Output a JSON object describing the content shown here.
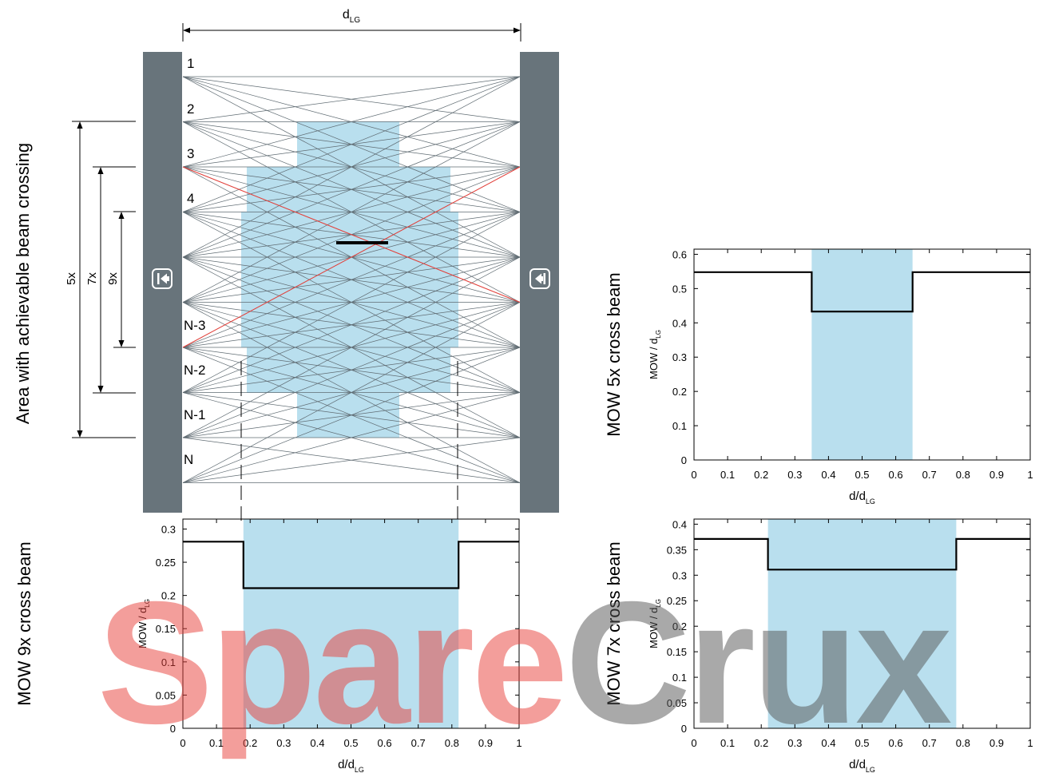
{
  "diagram": {
    "width_label_main": "d",
    "width_label_sub": "LG",
    "beam_labels": [
      "1",
      "2",
      "3",
      "4",
      "N-3",
      "N-2",
      "N-1",
      "N"
    ],
    "bracket_labels": [
      "5x",
      "7x",
      "9x"
    ],
    "left_title": "Area with achievable beam crossing",
    "sender_icon": "sender-arrow-icon",
    "receiver_icon": "receiver-arrow-icon",
    "colors": {
      "post": "#68747b",
      "highlight": "#b9dfee",
      "beam": "#5f6b72",
      "cross_beam": "#e8403a",
      "step_line": "#000000"
    }
  },
  "chart_data": [
    {
      "type": "line",
      "title": "MOW 5x cross beam",
      "ylabel_main": "MOW / d",
      "ylabel_sub": "LG",
      "xlabel_main": "d/d",
      "xlabel_sub": "LG",
      "x_ticks": [
        "0",
        "0.1",
        "0.2",
        "0.3",
        "0.4",
        "0.5",
        "0.6",
        "0.7",
        "0.8",
        "0.9",
        "1"
      ],
      "y_ticks": [
        "0",
        "0.1",
        "0.2",
        "0.3",
        "0.4",
        "0.5",
        "0.6"
      ],
      "xlim": [
        0,
        1
      ],
      "ylim": [
        0,
        0.615
      ],
      "highlight_range": [
        0.35,
        0.65
      ],
      "x": [
        0,
        0.35,
        0.35,
        0.65,
        0.65,
        1
      ],
      "y": [
        0.548,
        0.548,
        0.433,
        0.433,
        0.548,
        0.548
      ]
    },
    {
      "type": "line",
      "title": "MOW 9x cross beam",
      "ylabel_main": "MOW / d",
      "ylabel_sub": "LG",
      "xlabel_main": "d/d",
      "xlabel_sub": "LG",
      "x_ticks": [
        "0",
        "0.1",
        "0.2",
        "0.3",
        "0.4",
        "0.5",
        "0.6",
        "0.7",
        "0.8",
        "0.9",
        "1"
      ],
      "y_ticks": [
        "0",
        "0.05",
        "0.1",
        "0.15",
        "0.2",
        "0.25",
        "0.3"
      ],
      "xlim": [
        0,
        1
      ],
      "ylim": [
        0,
        0.315
      ],
      "highlight_range": [
        0.18,
        0.82
      ],
      "x": [
        0,
        0.18,
        0.18,
        0.82,
        0.82,
        1
      ],
      "y": [
        0.281,
        0.281,
        0.211,
        0.211,
        0.281,
        0.281
      ]
    },
    {
      "type": "line",
      "title": "MOW 7x cross beam",
      "ylabel_main": "MOW / d",
      "ylabel_sub": "LG",
      "xlabel_main": "d/d",
      "xlabel_sub": "LG",
      "x_ticks": [
        "0",
        "0.1",
        "0.2",
        "0.3",
        "0.4",
        "0.5",
        "0.6",
        "0.7",
        "0.8",
        "0.9",
        "1"
      ],
      "y_ticks": [
        "0",
        "0.05",
        "0.1",
        "0.15",
        "0.2",
        "0.25",
        "0.3",
        "0.35",
        "0.4"
      ],
      "xlim": [
        0,
        1
      ],
      "ylim": [
        0,
        0.41
      ],
      "highlight_range": [
        0.22,
        0.78
      ],
      "x": [
        0,
        0.22,
        0.22,
        0.78,
        0.78,
        1
      ],
      "y": [
        0.371,
        0.371,
        0.311,
        0.311,
        0.371,
        0.371
      ]
    }
  ],
  "watermark": {
    "part1": "Spare",
    "part2": "Crux",
    "color1": "#e8403a",
    "color2": "#555555"
  }
}
